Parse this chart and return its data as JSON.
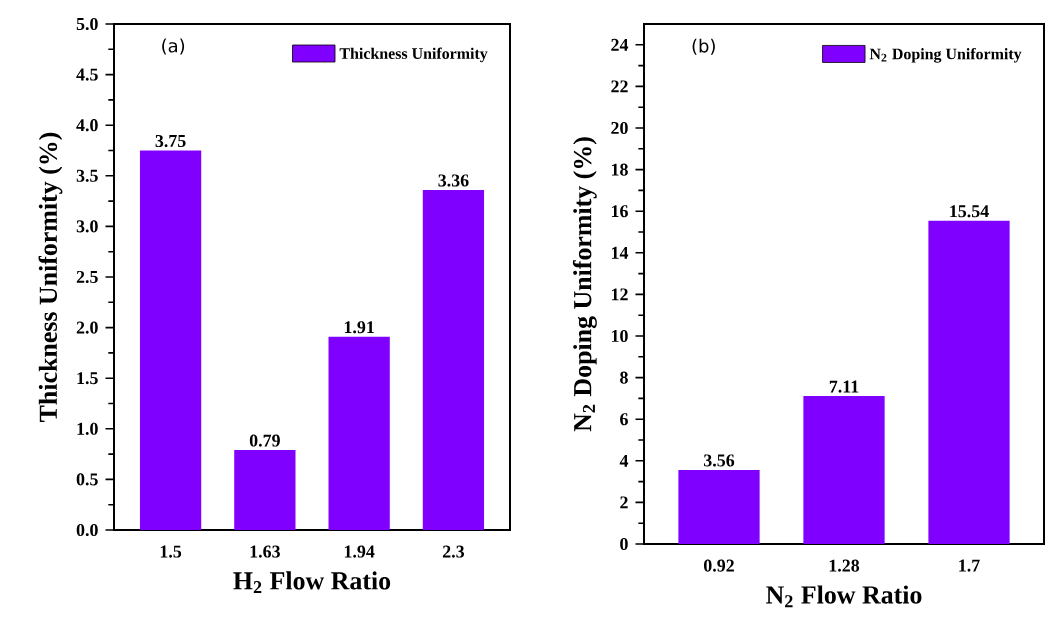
{
  "chart_data": [
    {
      "type": "bar",
      "categories": [
        "1.5",
        "1.63",
        "1.94",
        "2.3"
      ],
      "series": [
        {
          "name": "Thickness Uniformity",
          "color": "#8000ff",
          "values": [
            3.75,
            0.79,
            1.91,
            3.36
          ]
        }
      ],
      "xlabel": "H$_{2}$ Flow Ratio",
      "ylabel": "Thickness Uniformity (%)",
      "ylim": [
        0,
        5
      ],
      "yticks": [
        {
          "value": 0,
          "label": "0.0"
        },
        0.5,
        {
          "value": 1,
          "label": "1.0"
        },
        1.5,
        {
          "value": 2,
          "label": "2.0"
        },
        2.5,
        {
          "value": 3,
          "label": "3.0"
        },
        3.5,
        {
          "value": 4,
          "label": "4.0"
        },
        4.5,
        {
          "value": 5,
          "label": "5.0"
        }
      ],
      "annotations": [
        "(a)"
      ],
      "data_labels": true,
      "legend": "top right",
      "grid": false
    },
    {
      "type": "bar",
      "categories": [
        "0.92",
        "1.28",
        "1.7"
      ],
      "series": [
        {
          "name": "N$_{2}$ Doping Uniformity",
          "color": "#8000ff",
          "values": [
            3.56,
            7.11,
            15.54
          ]
        }
      ],
      "xlabel": "N$_{2}$ Flow Ratio",
      "ylabel": "N$_{2}$ Doping Uniformity (%)",
      "ylim": [
        0,
        25
      ],
      "yticks": [
        0,
        2,
        4,
        6,
        8,
        10,
        12,
        14,
        16,
        18,
        20,
        22,
        24
      ],
      "annotations": [
        "(b)"
      ],
      "data_labels": true,
      "legend": "top right",
      "grid": false
    }
  ]
}
